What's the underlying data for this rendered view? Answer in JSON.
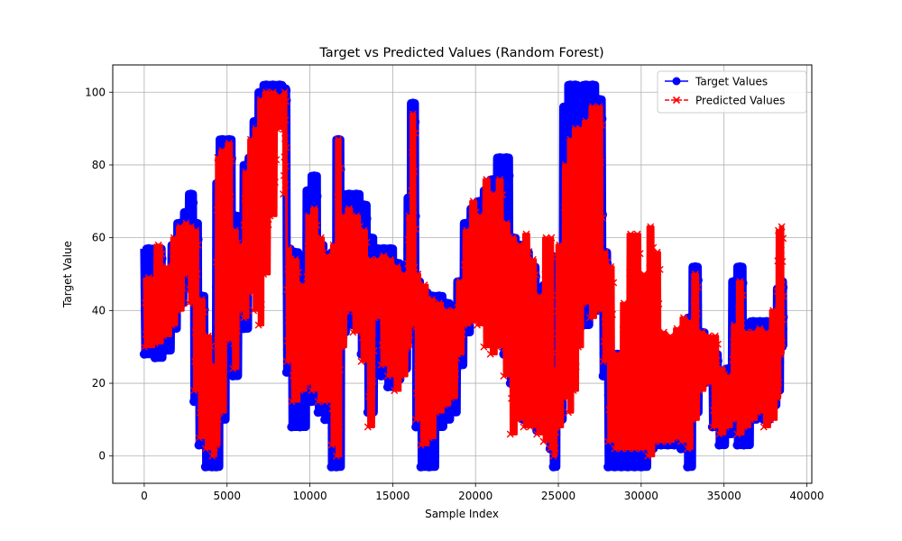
{
  "chart_data": {
    "type": "line",
    "title": "Target vs Predicted Values (Random Forest)",
    "xlabel": "Sample Index",
    "ylabel": "Target Value",
    "xlim": [
      -1900,
      40300
    ],
    "ylim": [
      -7.5,
      107.5
    ],
    "xticks": [
      0,
      5000,
      10000,
      15000,
      20000,
      25000,
      30000,
      35000,
      40000
    ],
    "yticks": [
      0,
      20,
      40,
      60,
      80,
      100
    ],
    "grid": true,
    "legend_position": "top-right",
    "series": [
      {
        "name": "Target Values",
        "color": "#0000ff",
        "marker": "circle",
        "linestyle": "solid",
        "segments": [
          [
            0,
            57,
            28
          ],
          [
            650,
            57,
            27
          ],
          [
            1150,
            48,
            29
          ],
          [
            1650,
            58,
            35
          ],
          [
            2000,
            64,
            42
          ],
          [
            2400,
            67,
            52
          ],
          [
            2700,
            72,
            46
          ],
          [
            3000,
            64,
            15
          ],
          [
            3300,
            44,
            3
          ],
          [
            3700,
            30,
            -3
          ],
          [
            4100,
            27,
            -3
          ],
          [
            4350,
            75,
            -3
          ],
          [
            4550,
            87,
            10
          ],
          [
            4950,
            87,
            30
          ],
          [
            5350,
            66,
            22
          ],
          [
            5700,
            61,
            44
          ],
          [
            6000,
            80,
            35
          ],
          [
            6300,
            82,
            56
          ],
          [
            6600,
            92,
            66
          ],
          [
            6900,
            100,
            88
          ],
          [
            7200,
            102,
            95
          ],
          [
            7600,
            102,
            96
          ],
          [
            8000,
            102,
            98
          ],
          [
            8400,
            101,
            95
          ],
          [
            8600,
            57,
            23
          ],
          [
            8900,
            56,
            8
          ],
          [
            9400,
            49,
            8
          ],
          [
            9800,
            73,
            16
          ],
          [
            10100,
            77,
            15
          ],
          [
            10500,
            58,
            12
          ],
          [
            10900,
            54,
            10
          ],
          [
            11300,
            56,
            -3
          ],
          [
            11600,
            87,
            -3
          ],
          [
            11900,
            70,
            34
          ],
          [
            12200,
            72,
            44
          ],
          [
            12600,
            72,
            36
          ],
          [
            13100,
            69,
            28
          ],
          [
            13500,
            60,
            12
          ],
          [
            13900,
            57,
            40
          ],
          [
            14300,
            57,
            22
          ],
          [
            14700,
            57,
            19
          ],
          [
            15100,
            53,
            21
          ],
          [
            15500,
            52,
            24
          ],
          [
            15900,
            71,
            32
          ],
          [
            16100,
            97,
            40
          ],
          [
            16400,
            48,
            8
          ],
          [
            16700,
            45,
            -3
          ],
          [
            17200,
            44,
            -3
          ],
          [
            17600,
            44,
            8
          ],
          [
            18100,
            42,
            10
          ],
          [
            18500,
            38,
            12
          ],
          [
            18900,
            48,
            25
          ],
          [
            19300,
            64,
            34
          ],
          [
            19700,
            68,
            38
          ],
          [
            20100,
            70,
            40
          ],
          [
            20500,
            73,
            37
          ],
          [
            20900,
            76,
            40
          ],
          [
            21300,
            82,
            34
          ],
          [
            21700,
            82,
            28
          ],
          [
            22100,
            60,
            20
          ],
          [
            22500,
            58,
            12
          ],
          [
            22900,
            56,
            10
          ],
          [
            23300,
            52,
            22
          ],
          [
            23700,
            44,
            7
          ],
          [
            24100,
            47,
            18
          ],
          [
            24500,
            55,
            2
          ],
          [
            24700,
            30,
            -3
          ],
          [
            24900,
            54,
            10
          ],
          [
            25300,
            96,
            22
          ],
          [
            25600,
            102,
            34
          ],
          [
            25900,
            102,
            46
          ],
          [
            26200,
            97,
            40
          ],
          [
            26500,
            102,
            36
          ],
          [
            26900,
            102,
            42
          ],
          [
            27300,
            98,
            40
          ],
          [
            27700,
            56,
            22
          ],
          [
            28000,
            28,
            -3
          ],
          [
            28400,
            28,
            -3
          ],
          [
            28800,
            22,
            -3
          ],
          [
            29200,
            30,
            -3
          ],
          [
            29600,
            27,
            -3
          ],
          [
            30000,
            24,
            -3
          ],
          [
            30400,
            18,
            2
          ],
          [
            30800,
            30,
            3
          ],
          [
            31200,
            27,
            3
          ],
          [
            31600,
            25,
            3
          ],
          [
            32000,
            32,
            3
          ],
          [
            32400,
            30,
            2
          ],
          [
            32800,
            38,
            -3
          ],
          [
            33100,
            52,
            12
          ],
          [
            33500,
            34,
            20
          ],
          [
            33900,
            30,
            22
          ],
          [
            34300,
            28,
            8
          ],
          [
            34700,
            22,
            3
          ],
          [
            35100,
            24,
            6
          ],
          [
            35500,
            48,
            10
          ],
          [
            35800,
            52,
            3
          ],
          [
            36200,
            36,
            3
          ],
          [
            36600,
            37,
            10
          ],
          [
            37000,
            37,
            12
          ],
          [
            37400,
            37,
            10
          ],
          [
            37800,
            37,
            14
          ],
          [
            38200,
            46,
            18
          ],
          [
            38400,
            48,
            30
          ]
        ]
      },
      {
        "name": "Predicted Values",
        "color": "#ff0000",
        "marker": "x",
        "linestyle": "dashed",
        "segments": [
          [
            0,
            49,
            30
          ],
          [
            650,
            58,
            31
          ],
          [
            1150,
            52,
            33
          ],
          [
            1650,
            60,
            36
          ],
          [
            2000,
            63,
            40
          ],
          [
            2400,
            64,
            50
          ],
          [
            2700,
            63,
            42
          ],
          [
            3000,
            62,
            18
          ],
          [
            3300,
            43,
            5
          ],
          [
            3700,
            33,
            2
          ],
          [
            4100,
            25,
            0
          ],
          [
            4350,
            82,
            3
          ],
          [
            4550,
            84,
            12
          ],
          [
            4950,
            86,
            32
          ],
          [
            5350,
            62,
            24
          ],
          [
            5700,
            58,
            40
          ],
          [
            6000,
            78,
            38
          ],
          [
            6300,
            87,
            45
          ],
          [
            6600,
            90,
            40
          ],
          [
            6900,
            98,
            36
          ],
          [
            7200,
            100,
            50
          ],
          [
            7600,
            100,
            66
          ],
          [
            8000,
            99,
            90
          ],
          [
            8400,
            100,
            72
          ],
          [
            8600,
            57,
            26
          ],
          [
            8900,
            54,
            15
          ],
          [
            9400,
            47,
            18
          ],
          [
            9800,
            66,
            20
          ],
          [
            10100,
            68,
            18
          ],
          [
            10500,
            60,
            15
          ],
          [
            10900,
            55,
            15
          ],
          [
            11300,
            58,
            3
          ],
          [
            11600,
            87,
            0
          ],
          [
            11900,
            66,
            30
          ],
          [
            12200,
            68,
            40
          ],
          [
            12600,
            66,
            34
          ],
          [
            13100,
            62,
            26
          ],
          [
            13500,
            54,
            8
          ],
          [
            13900,
            54,
            38
          ],
          [
            14300,
            55,
            25
          ],
          [
            14700,
            54,
            22
          ],
          [
            15100,
            52,
            18
          ],
          [
            15500,
            50,
            22
          ],
          [
            15900,
            66,
            30
          ],
          [
            16100,
            94,
            36
          ],
          [
            16400,
            50,
            10
          ],
          [
            16700,
            47,
            3
          ],
          [
            17200,
            43,
            5
          ],
          [
            17600,
            42,
            12
          ],
          [
            18100,
            40,
            14
          ],
          [
            18500,
            40,
            16
          ],
          [
            18900,
            48,
            28
          ],
          [
            19300,
            62,
            36
          ],
          [
            19700,
            70,
            37
          ],
          [
            20100,
            66,
            36
          ],
          [
            20500,
            76,
            30
          ],
          [
            20900,
            72,
            28
          ],
          [
            21300,
            76,
            30
          ],
          [
            21700,
            64,
            22
          ],
          [
            22100,
            60,
            6
          ],
          [
            22500,
            58,
            10
          ],
          [
            22900,
            61,
            8
          ],
          [
            23300,
            54,
            8
          ],
          [
            23700,
            44,
            6
          ],
          [
            24100,
            60,
            4
          ],
          [
            24500,
            60,
            2
          ],
          [
            24700,
            24,
            0
          ],
          [
            24900,
            58,
            8
          ],
          [
            25300,
            80,
            16
          ],
          [
            25600,
            87,
            12
          ],
          [
            25900,
            90,
            18
          ],
          [
            26200,
            90,
            30
          ],
          [
            26500,
            92,
            42
          ],
          [
            26900,
            96,
            38
          ],
          [
            27300,
            96,
            40
          ],
          [
            27700,
            56,
            26
          ],
          [
            28000,
            52,
            4
          ],
          [
            28400,
            28,
            2
          ],
          [
            28800,
            42,
            2
          ],
          [
            29200,
            61,
            2
          ],
          [
            29600,
            61,
            2
          ],
          [
            30000,
            50,
            2
          ],
          [
            30400,
            63,
            0
          ],
          [
            30800,
            56,
            4
          ],
          [
            31200,
            34,
            4
          ],
          [
            31600,
            33,
            4
          ],
          [
            32000,
            35,
            5
          ],
          [
            32400,
            38,
            4
          ],
          [
            32800,
            37,
            2
          ],
          [
            33100,
            50,
            10
          ],
          [
            33500,
            34,
            18
          ],
          [
            33900,
            33,
            20
          ],
          [
            34300,
            33,
            8
          ],
          [
            34700,
            24,
            6
          ],
          [
            35100,
            22,
            8
          ],
          [
            35500,
            36,
            10
          ],
          [
            35800,
            48,
            6
          ],
          [
            36200,
            34,
            8
          ],
          [
            36600,
            34,
            10
          ],
          [
            37000,
            35,
            12
          ],
          [
            37400,
            34,
            8
          ],
          [
            37800,
            40,
            10
          ],
          [
            38200,
            62,
            16
          ],
          [
            38400,
            63,
            28
          ]
        ]
      }
    ]
  }
}
